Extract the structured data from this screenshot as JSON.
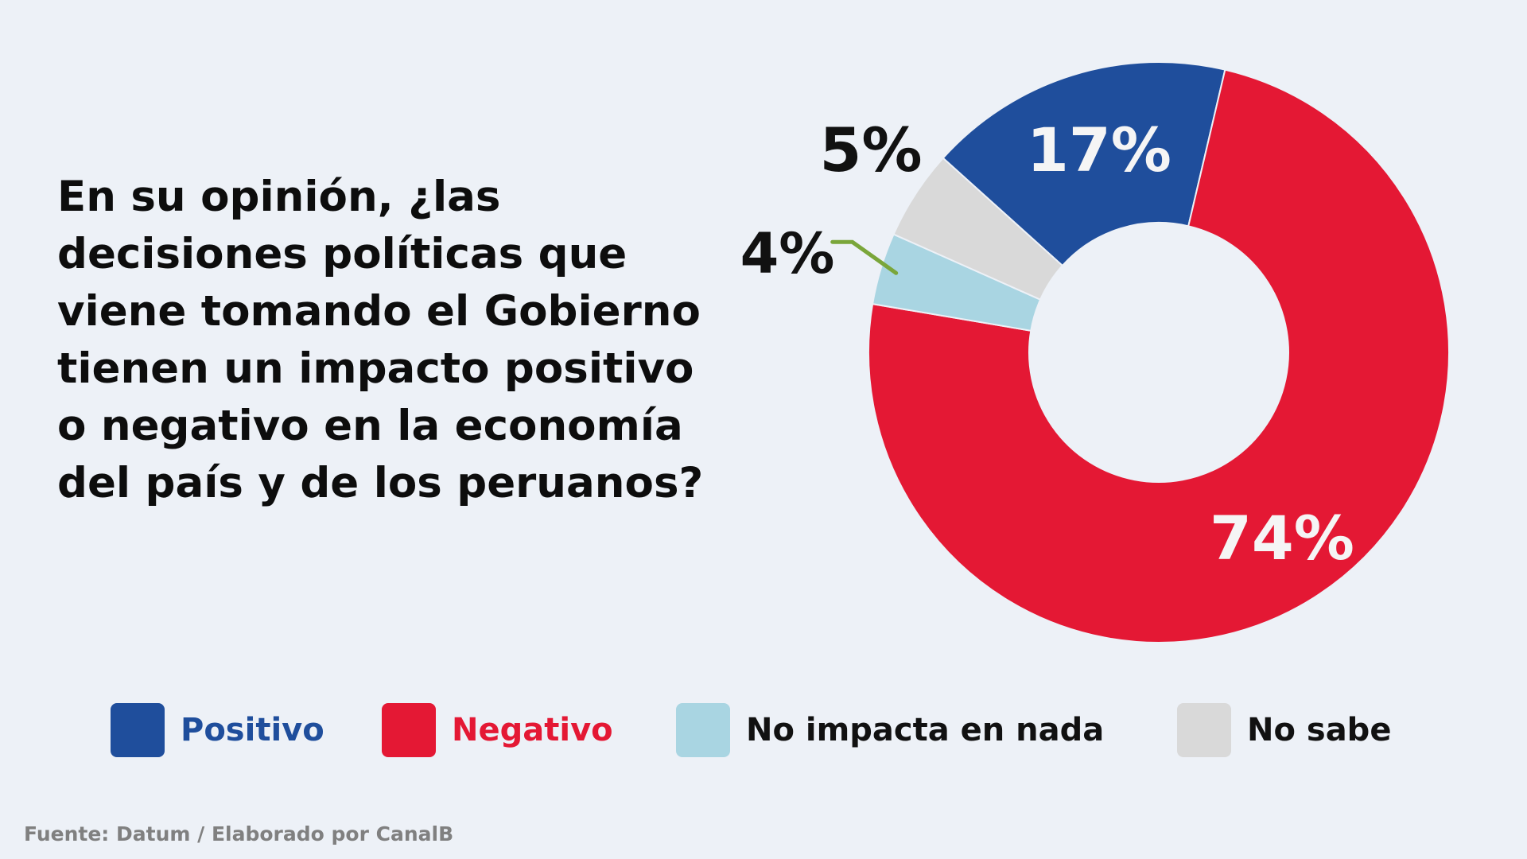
{
  "question_lines": [
    "En su opinión, ¿las",
    "decisiones políticas que",
    "viene tomando el Gobierno",
    "tienen un impacto positivo",
    "o negativo en la economía",
    "del país y de los peruanos?"
  ],
  "chart_data": {
    "type": "pie",
    "variant": "donut",
    "title": "En su opinión, ¿las decisiones políticas que viene tomando el Gobierno tienen un impacto positivo o negativo en la economía del país y de los peruanos?",
    "categories": [
      "Positivo",
      "Negativo",
      "No impacta en nada",
      "No sabe"
    ],
    "values": [
      17,
      74,
      4,
      5
    ],
    "value_labels": [
      "17%",
      "74%",
      "4%",
      "5%"
    ],
    "colors": [
      "#1f4e9c",
      "#e41834",
      "#a9d5e2",
      "#d9d9d9"
    ],
    "legend_text_colors": [
      "#1f4e9c",
      "#e41834",
      "#111111",
      "#111111"
    ],
    "label_colors": [
      "#f5f5f5",
      "#f5f5f5",
      "#111111",
      "#111111"
    ],
    "callout_color": "#7aa63a",
    "legend_position": "bottom"
  },
  "source": "Fuente: Datum / Elaborado por CanalB"
}
